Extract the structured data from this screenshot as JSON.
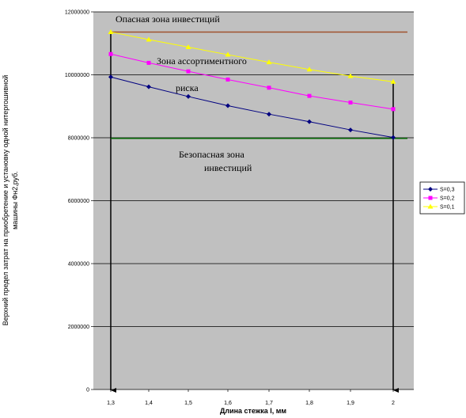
{
  "chart_data": {
    "type": "line",
    "title": "",
    "xlabel": "Длина стежка l, мм",
    "ylabel_lines": [
      "Верхний предел затрат на приобретение и установку одной нитеprошивной",
      "машины Фн2,руб."
    ],
    "x": [
      1.3,
      1.4,
      1.5,
      1.6,
      1.7,
      1.8,
      1.9,
      2
    ],
    "x_tick_labels": [
      "1,3",
      "1,4",
      "1,5",
      "1,6",
      "1,7",
      "1,8",
      "1,9",
      "2"
    ],
    "ylim": [
      0,
      12000000
    ],
    "y_ticks": [
      0,
      2000000,
      4000000,
      6000000,
      8000000,
      10000000,
      12000000
    ],
    "y_tick_labels": [
      "0",
      "2000000",
      "4000000",
      "6000000",
      "8000000",
      "10000000",
      "12000000"
    ],
    "grid": "horizontal",
    "legend_position": "right",
    "series": [
      {
        "name": "S=0,3",
        "color": "#000080",
        "marker": "diamond",
        "values": [
          9930000,
          9620000,
          9310000,
          9020000,
          8750000,
          8510000,
          8250000,
          8010000
        ]
      },
      {
        "name": "S=0,2",
        "color": "#ff00ff",
        "marker": "square",
        "values": [
          10660000,
          10380000,
          10110000,
          9850000,
          9590000,
          9330000,
          9120000,
          8910000
        ]
      },
      {
        "name": "S=0,1",
        "color": "#ffff00",
        "marker": "triangle",
        "values": [
          11360000,
          11120000,
          10880000,
          10640000,
          10400000,
          10170000,
          9960000,
          9780000
        ]
      }
    ],
    "reference_lines": [
      {
        "y": 11360000,
        "color": "#a0522d"
      },
      {
        "y": 7980000,
        "color": "#006400"
      }
    ],
    "annotations": {
      "danger_zone": "Опасная зона инвестиций",
      "assortment_zone_1": "Зона ассортиментного",
      "assortment_zone_2": "риска",
      "safe_zone_1": "Безопасная зона",
      "safe_zone_2": "инвестиций"
    }
  }
}
